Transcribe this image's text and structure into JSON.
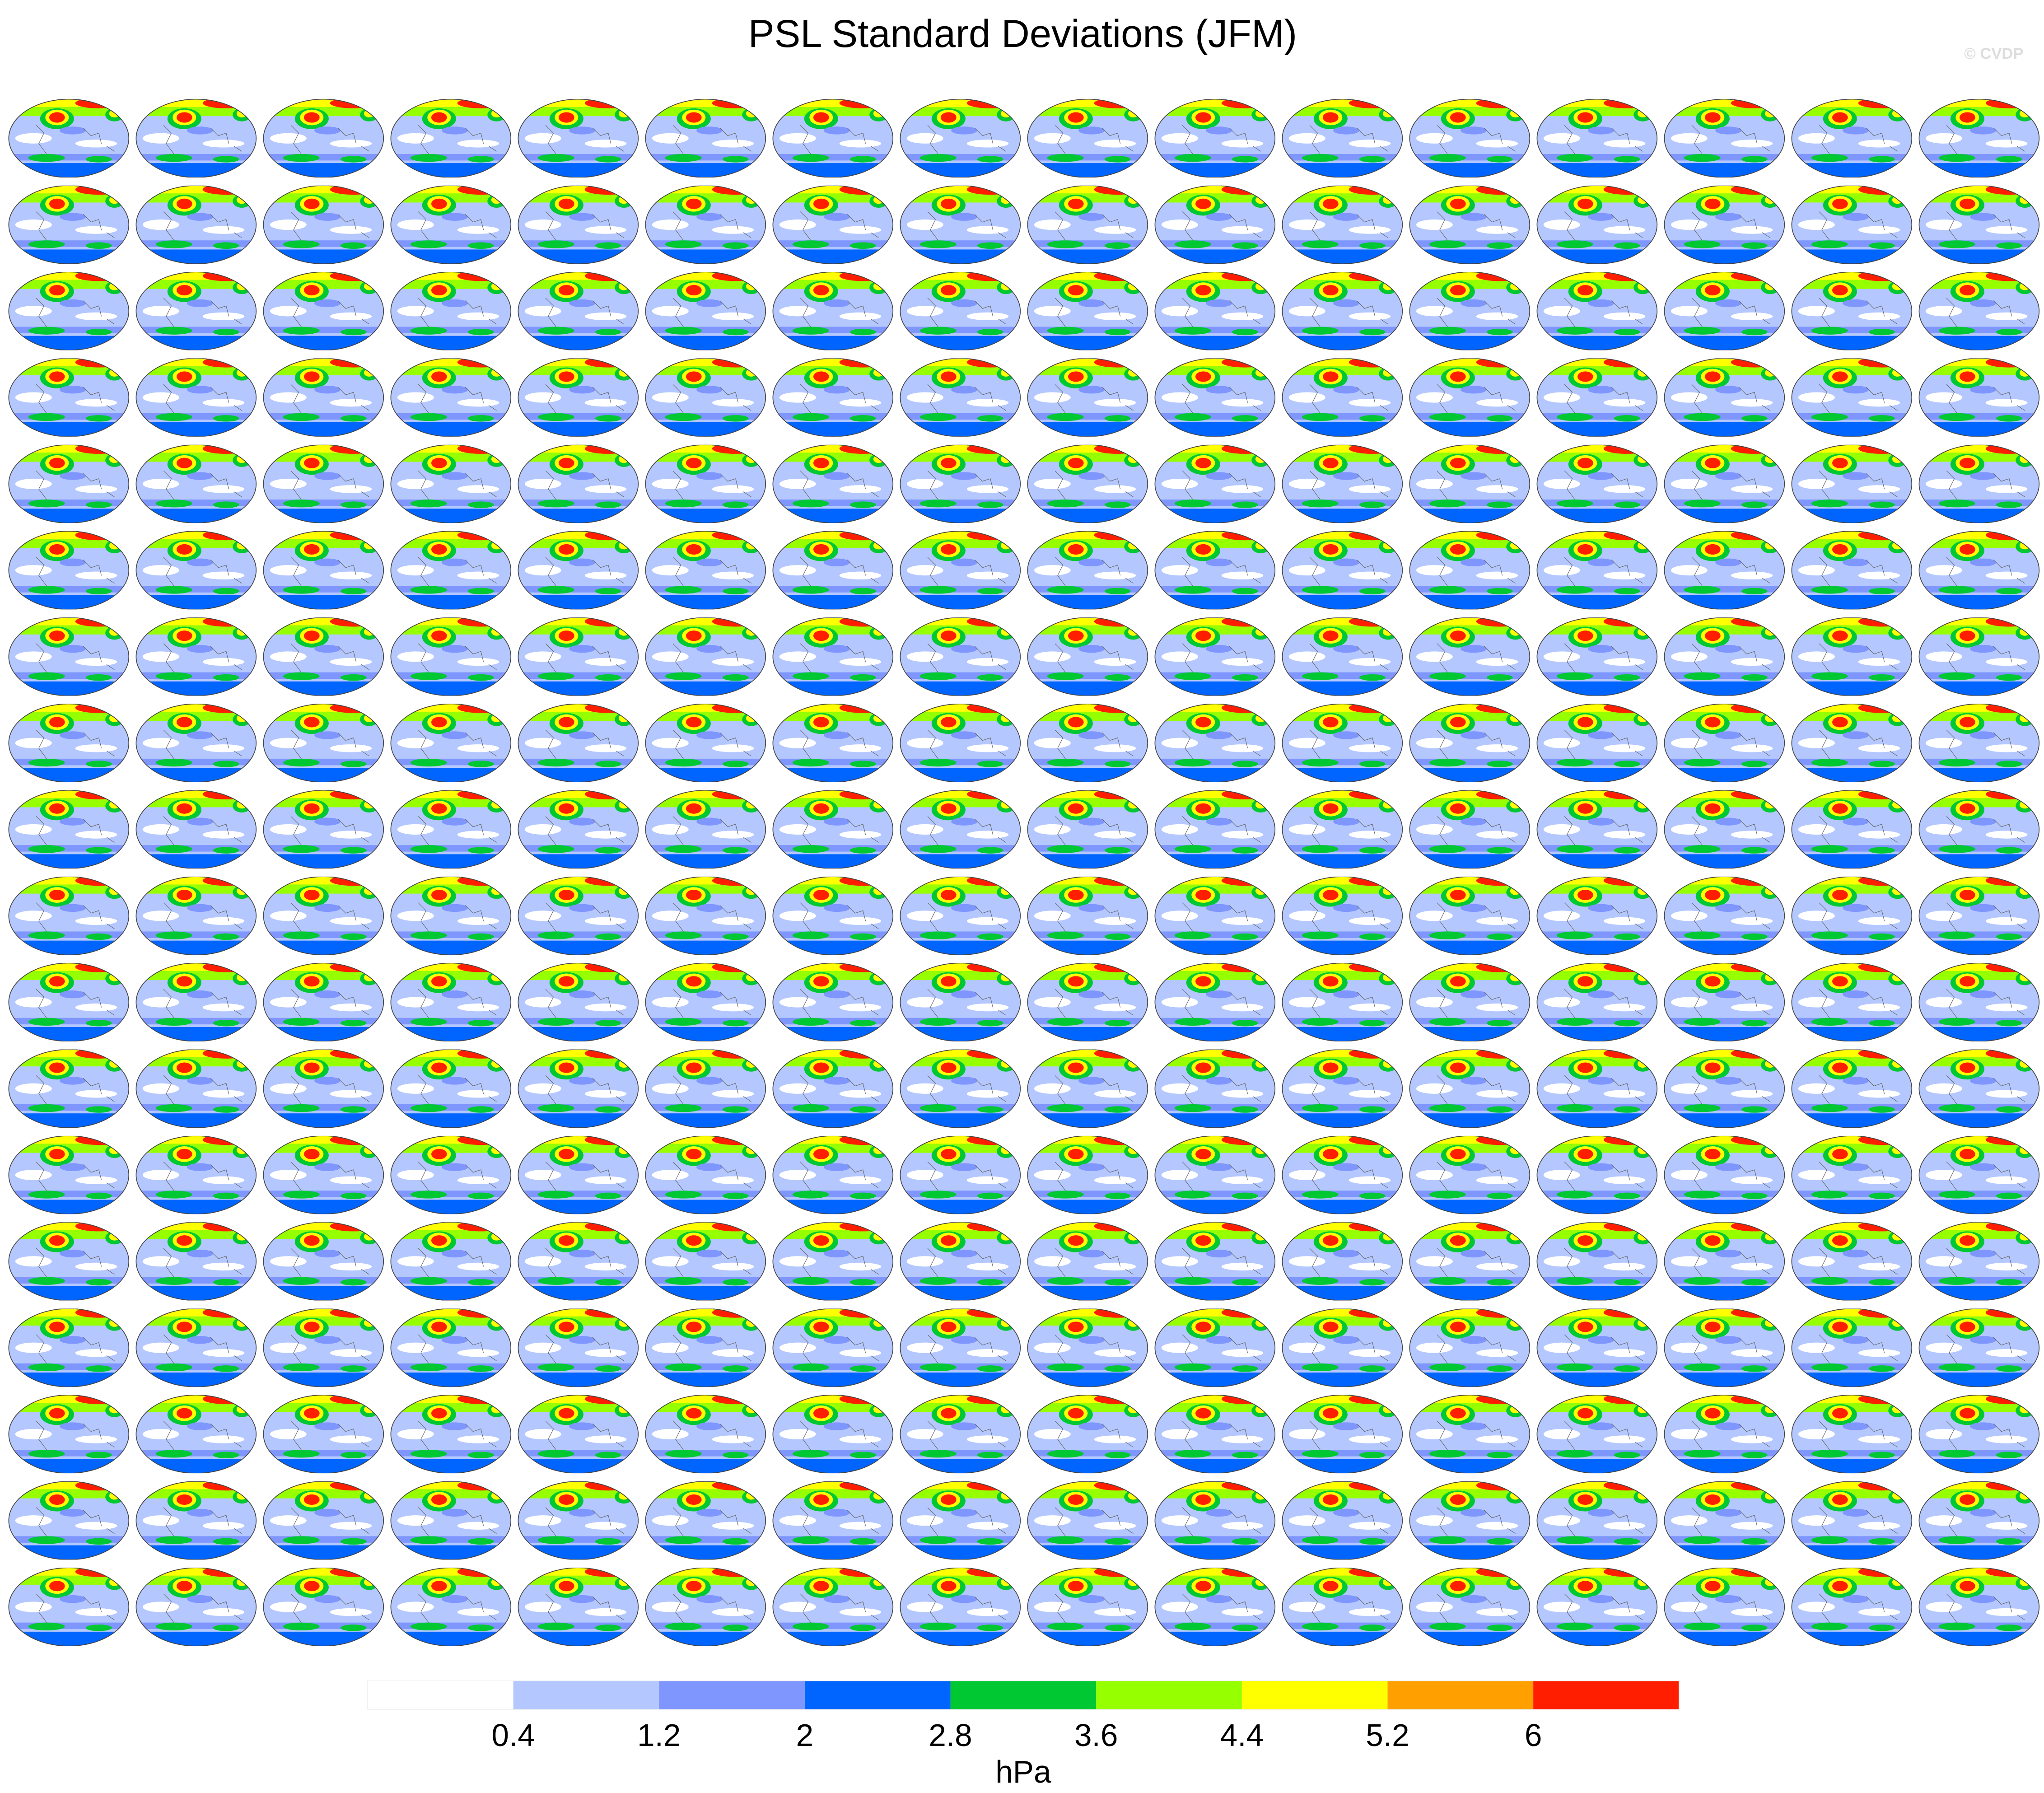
{
  "title": "PSL Standard Deviations (JFM)",
  "watermark": "© CVDP",
  "colorbar": {
    "levels": [
      0.4,
      1.2,
      2,
      2.8,
      3.6,
      4.4,
      5.2,
      6
    ],
    "colors": [
      "#ffffff",
      "#b4c8ff",
      "#7f96ff",
      "#0064ff",
      "#00c832",
      "#96ff00",
      "#ffff00",
      "#ffa000",
      "#ff1e00"
    ],
    "unit": "hPa"
  }
}
